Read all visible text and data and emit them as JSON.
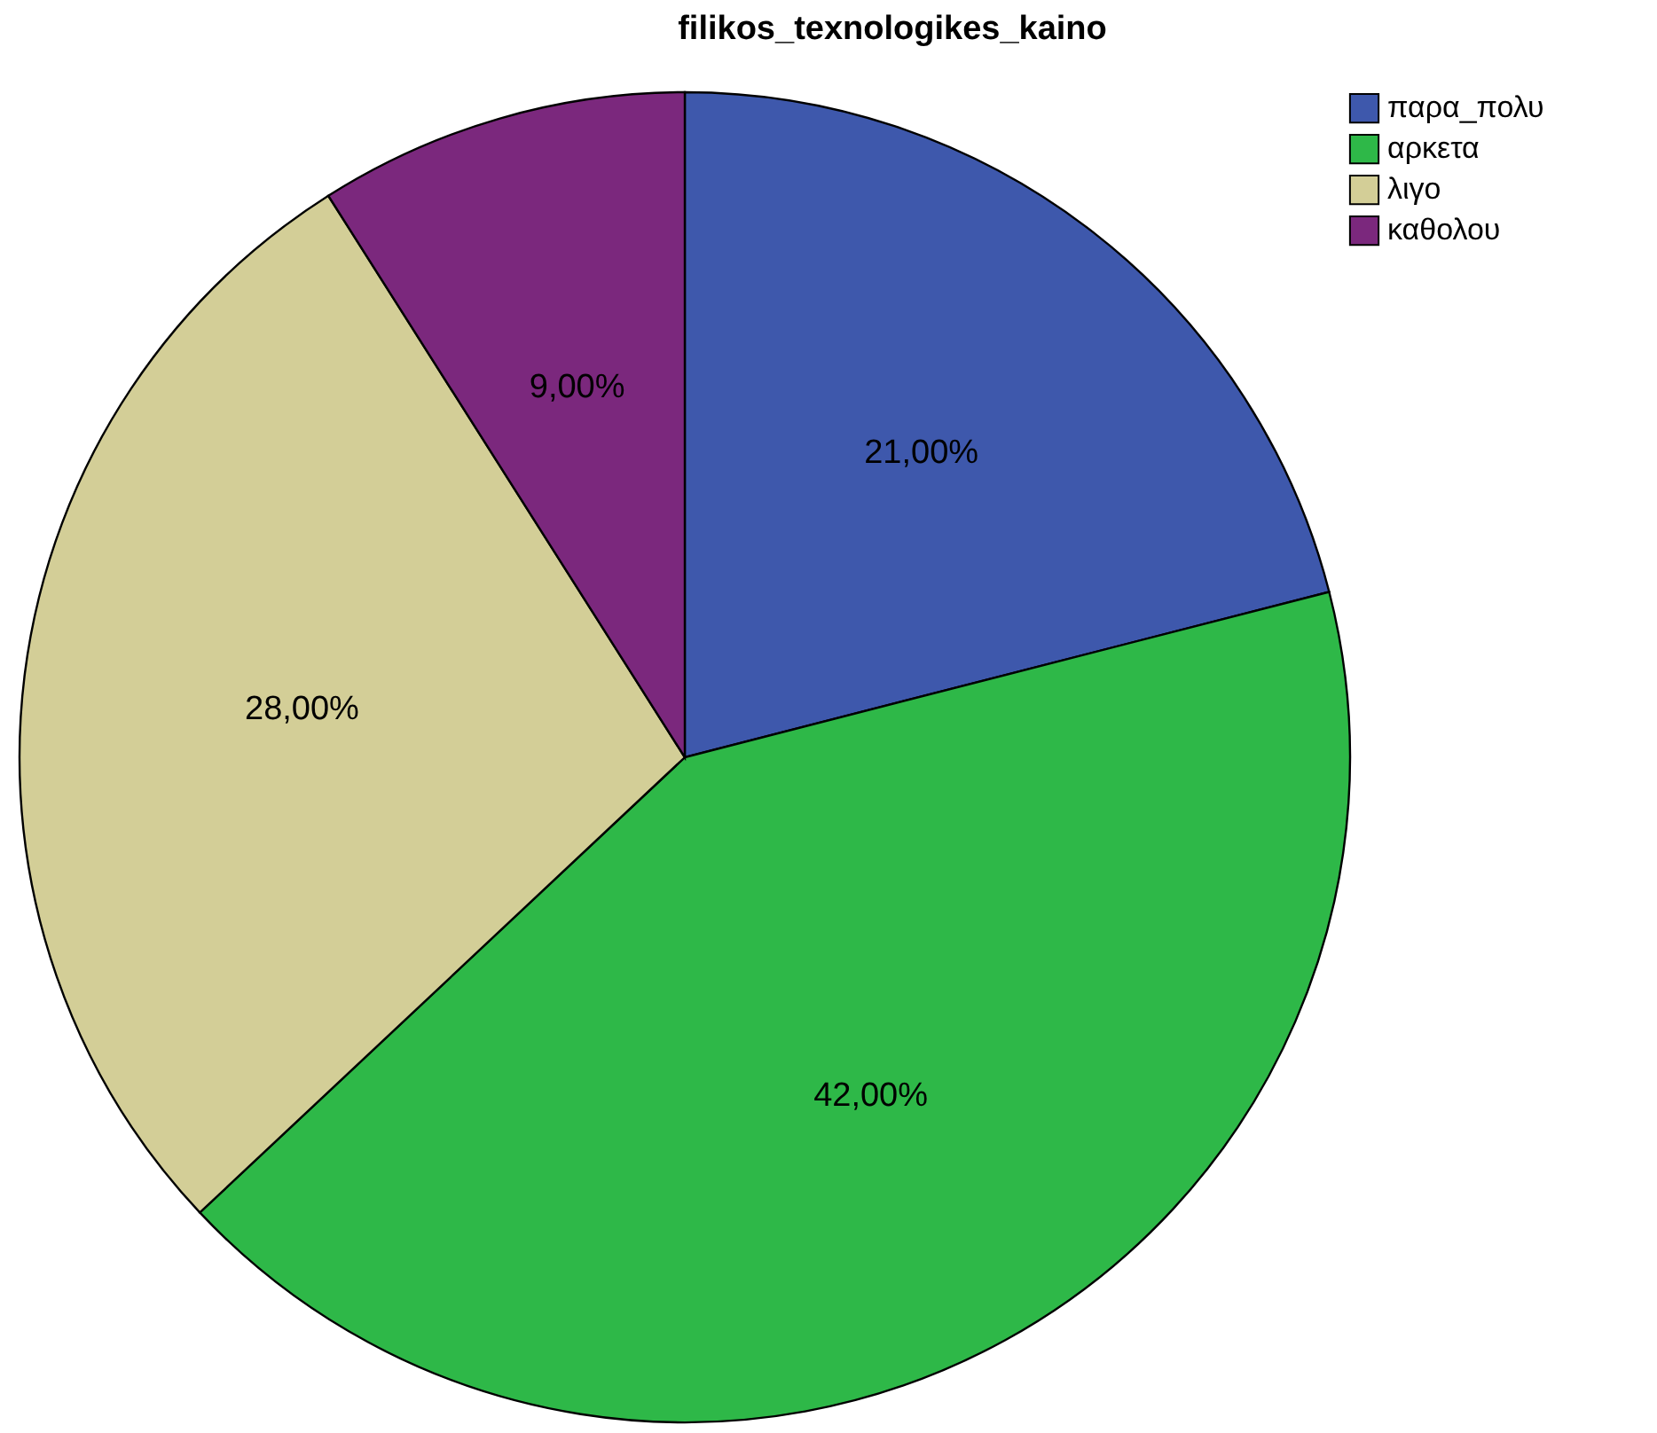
{
  "chart_data": {
    "type": "pie",
    "title": "filikos_texnologikes_kaino",
    "categories": [
      "παρα_πολυ",
      "αρκετα",
      "λιγο",
      "καθολου"
    ],
    "values": [
      21,
      42,
      28,
      9
    ],
    "colors": [
      "#3e58ac",
      "#2eb848",
      "#d3ce97",
      "#7b287d"
    ],
    "value_labels": [
      "21,00%",
      "42,00%",
      "28,00%",
      "9,00%"
    ],
    "legend": "top right"
  }
}
